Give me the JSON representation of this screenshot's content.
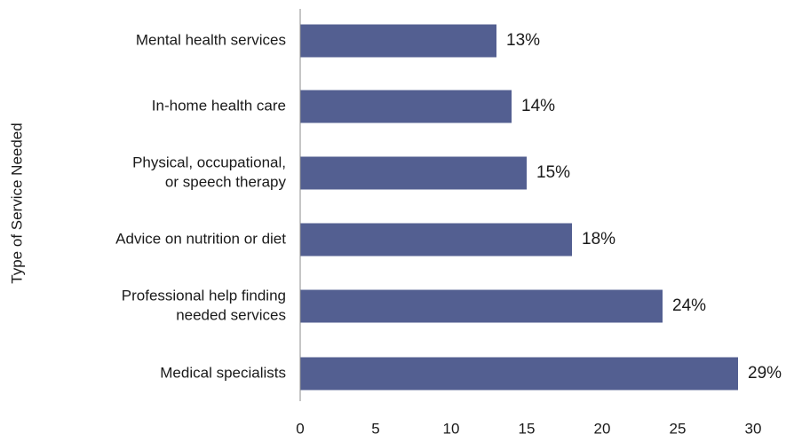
{
  "chart_data": {
    "type": "bar",
    "orientation": "horizontal",
    "title": "",
    "xlabel": "",
    "ylabel": "Type of Service Needed",
    "xlim": [
      0,
      30
    ],
    "xticks": [
      0,
      5,
      10,
      15,
      20,
      25,
      30
    ],
    "grid": false,
    "categories": [
      "Mental health services",
      "In-home health care",
      "Physical, occupational, or speech therapy",
      "Advice on nutrition or diet",
      "Professional help finding needed services",
      "Medical specialists"
    ],
    "category_label_lines": [
      [
        "Mental health services"
      ],
      [
        "In-home health care"
      ],
      [
        "Physical, occupational,",
        "or speech therapy"
      ],
      [
        "Advice on nutrition or diet"
      ],
      [
        "Professional help finding",
        "needed services"
      ],
      [
        "Medical specialists"
      ]
    ],
    "values": [
      13,
      14,
      15,
      18,
      24,
      29
    ],
    "value_labels": [
      "13%",
      "14%",
      "15%",
      "18%",
      "24%",
      "29%"
    ],
    "bar_color": "#535f91"
  }
}
